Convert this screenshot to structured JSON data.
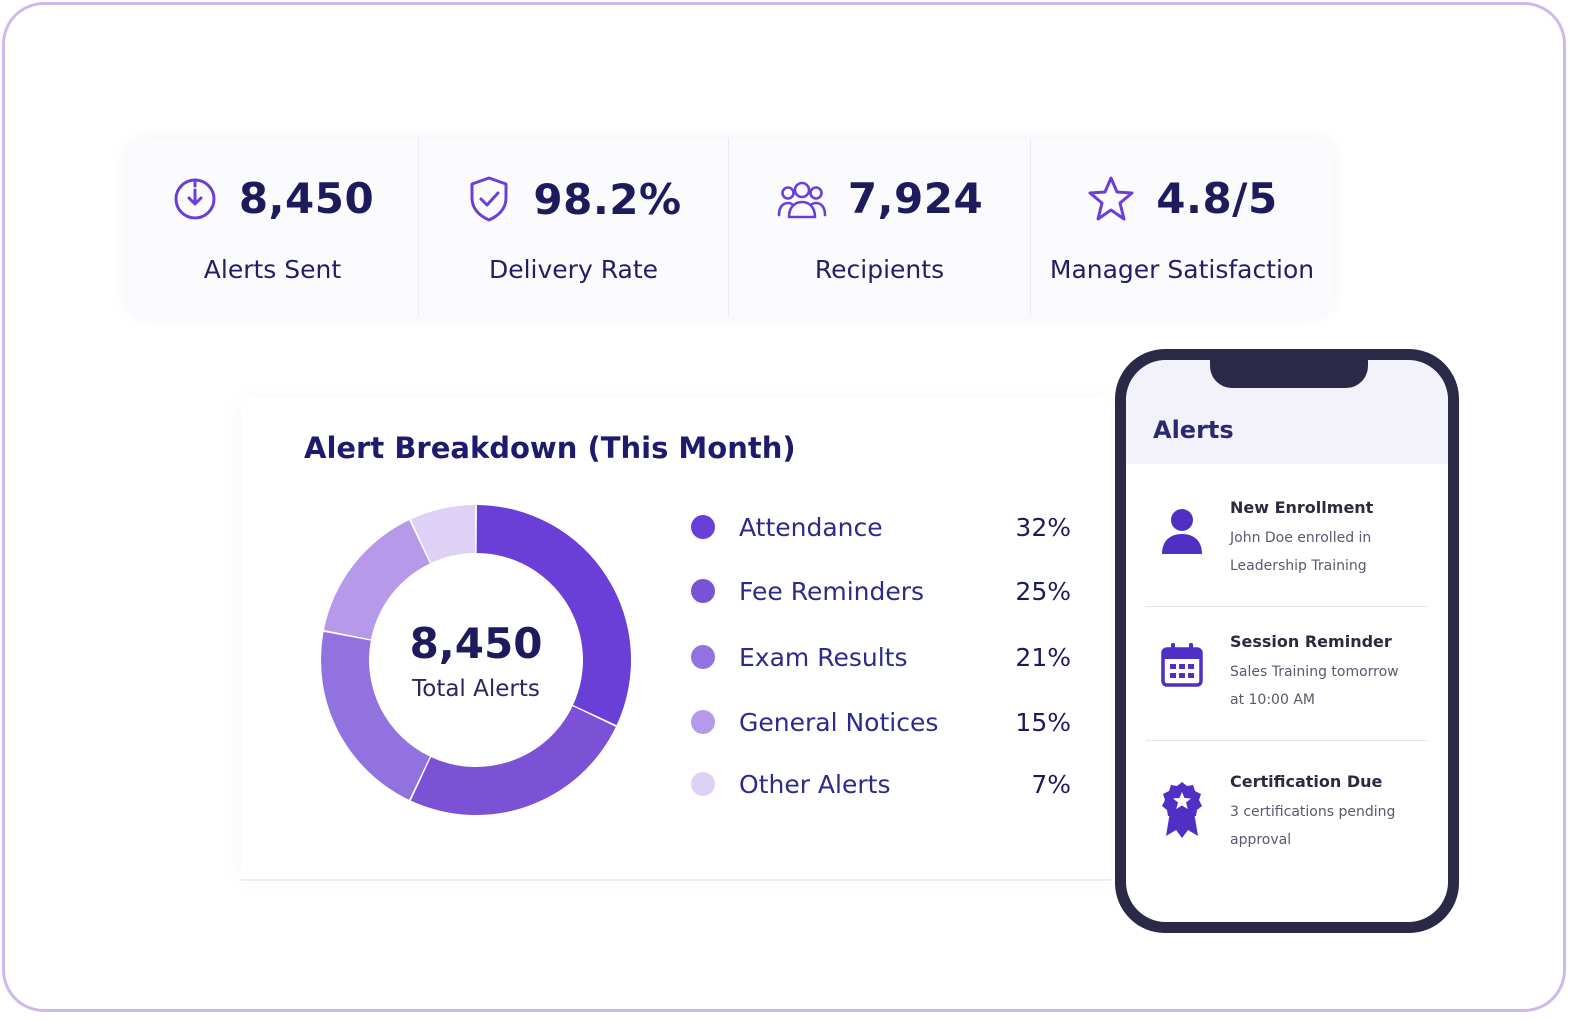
{
  "stats": [
    {
      "icon": "clock-alert-icon",
      "value": "8,450",
      "label": "Alerts Sent"
    },
    {
      "icon": "shield-check-icon",
      "value": "98.2%",
      "label": "Delivery Rate"
    },
    {
      "icon": "users-icon",
      "value": "7,924",
      "label": "Recipients"
    },
    {
      "icon": "star-icon",
      "value": "4.8/5",
      "label": "Manager Satisfaction"
    }
  ],
  "breakdown": {
    "title": "Alert Breakdown (This Month)",
    "total_value": "8,450",
    "total_label": "Total Alerts"
  },
  "chart_data": {
    "type": "pie",
    "title": "Alert Breakdown (This Month)",
    "categories": [
      "Attendance",
      "Fee Reminders",
      "Exam Results",
      "General Notices",
      "Other Alerts"
    ],
    "values": [
      32,
      25,
      21,
      15,
      7
    ],
    "labels": [
      "32%",
      "25%",
      "21%",
      "15%",
      "7%"
    ],
    "colors": [
      "#6a3fd8",
      "#7b52d6",
      "#9272de",
      "#b69ae9",
      "#ddd2f6"
    ],
    "center_value": "8,450",
    "center_label": "Total Alerts",
    "legend_position": "right"
  },
  "phone": {
    "title": "Alerts",
    "notifications": [
      {
        "icon": "person-icon",
        "title": "New Enrollment",
        "line1": "John Doe enrolled in",
        "line2": "Leadership Training"
      },
      {
        "icon": "calendar-icon",
        "title": "Session Reminder",
        "line1": "Sales Training tomorrow",
        "line2": "at 10:00 AM"
      },
      {
        "icon": "certificate-badge-icon",
        "title": "Certification Due",
        "line1": "3 certifications pending",
        "line2": "approval"
      }
    ]
  },
  "colors": {
    "accent": "#6a3fd8",
    "text_dark": "#1e1b5c",
    "frame_border": "#cdb8ef",
    "phone_body": "#2a2a48"
  }
}
